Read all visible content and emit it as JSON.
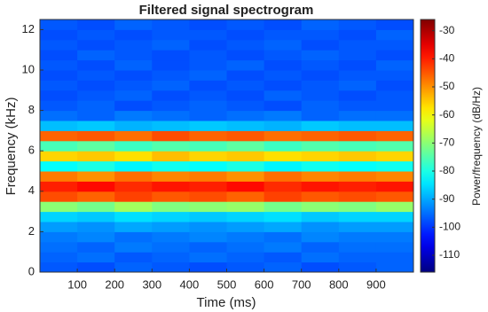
{
  "chart_data": {
    "type": "heatmap",
    "title": "Filtered signal spectrogram",
    "xlabel": "Time (ms)",
    "ylabel": "Frequency (kHz)",
    "colorbar_label": "Power/frequency (dB/Hz)",
    "colormap": "jet",
    "xlim": [
      0,
      1000
    ],
    "ylim": [
      0,
      12.5
    ],
    "clim": [
      -116,
      -26
    ],
    "xticks": [
      100,
      200,
      300,
      400,
      500,
      600,
      700,
      800,
      900
    ],
    "yticks": [
      0,
      2,
      4,
      6,
      8,
      10,
      12
    ],
    "cticks": [
      -30,
      -40,
      -50,
      -60,
      -70,
      -80,
      -90,
      -100,
      -110
    ],
    "x_edges": [
      0,
      100,
      200,
      300,
      400,
      500,
      600,
      700,
      800,
      900,
      1000
    ],
    "y_edges": [
      0,
      0.5,
      1,
      1.5,
      2,
      2.5,
      3,
      3.5,
      4,
      4.5,
      5,
      5.5,
      6,
      6.5,
      7,
      7.5,
      8,
      8.5,
      9,
      9.5,
      10,
      10.5,
      11,
      11.5,
      12,
      12.5
    ],
    "z": [
      [
        -97,
        -98,
        -96,
        -97,
        -98,
        -97,
        -96,
        -98,
        -97,
        -96
      ],
      [
        -96,
        -95,
        -97,
        -96,
        -95,
        -96,
        -97,
        -95,
        -96,
        -96
      ],
      [
        -95,
        -96,
        -94,
        -95,
        -96,
        -95,
        -94,
        -96,
        -95,
        -95
      ],
      [
        -94,
        -93,
        -95,
        -94,
        -93,
        -94,
        -95,
        -93,
        -94,
        -94
      ],
      [
        -91,
        -92,
        -90,
        -91,
        -92,
        -91,
        -90,
        -92,
        -91,
        -91
      ],
      [
        -86,
        -87,
        -85,
        -86,
        -87,
        -86,
        -85,
        -87,
        -86,
        -86
      ],
      [
        -70,
        -72,
        -68,
        -71,
        -70,
        -69,
        -72,
        -70,
        -71,
        -69
      ],
      [
        -44,
        -46,
        -43,
        -45,
        -44,
        -46,
        -43,
        -45,
        -44,
        -45
      ],
      [
        -40,
        -38,
        -41,
        -39,
        -40,
        -38,
        -41,
        -39,
        -40,
        -39
      ],
      [
        -48,
        -50,
        -47,
        -49,
        -48,
        -50,
        -47,
        -49,
        -48,
        -49
      ],
      [
        -82,
        -80,
        -83,
        -81,
        -82,
        -80,
        -83,
        -81,
        -82,
        -81
      ],
      [
        -56,
        -55,
        -57,
        -54,
        -56,
        -55,
        -57,
        -56,
        -55,
        -56
      ],
      [
        -76,
        -74,
        -77,
        -75,
        -76,
        -74,
        -77,
        -75,
        -76,
        -75
      ],
      [
        -46,
        -45,
        -47,
        -44,
        -46,
        -45,
        -47,
        -46,
        -45,
        -46
      ],
      [
        -88,
        -87,
        -89,
        -88,
        -87,
        -88,
        -89,
        -87,
        -88,
        -88
      ],
      [
        -95,
        -96,
        -94,
        -95,
        -96,
        -95,
        -94,
        -96,
        -95,
        -95
      ],
      [
        -97,
        -96,
        -98,
        -97,
        -96,
        -97,
        -98,
        -96,
        -97,
        -97
      ],
      [
        -98,
        -97,
        -96,
        -98,
        -97,
        -98,
        -96,
        -97,
        -98,
        -97
      ],
      [
        -97,
        -98,
        -97,
        -96,
        -98,
        -97,
        -98,
        -97,
        -96,
        -98
      ],
      [
        -98,
        -97,
        -98,
        -97,
        -96,
        -98,
        -97,
        -98,
        -97,
        -97
      ],
      [
        -97,
        -98,
        -96,
        -98,
        -97,
        -96,
        -98,
        -97,
        -98,
        -96
      ],
      [
        -98,
        -96,
        -97,
        -98,
        -97,
        -98,
        -97,
        -96,
        -97,
        -98
      ],
      [
        -97,
        -98,
        -97,
        -96,
        -98,
        -97,
        -96,
        -98,
        -97,
        -97
      ],
      [
        -98,
        -97,
        -98,
        -97,
        -97,
        -98,
        -97,
        -97,
        -98,
        -96
      ],
      [
        -97,
        -98,
        -96,
        -97,
        -98,
        -97,
        -98,
        -96,
        -97,
        -98
      ]
    ]
  }
}
